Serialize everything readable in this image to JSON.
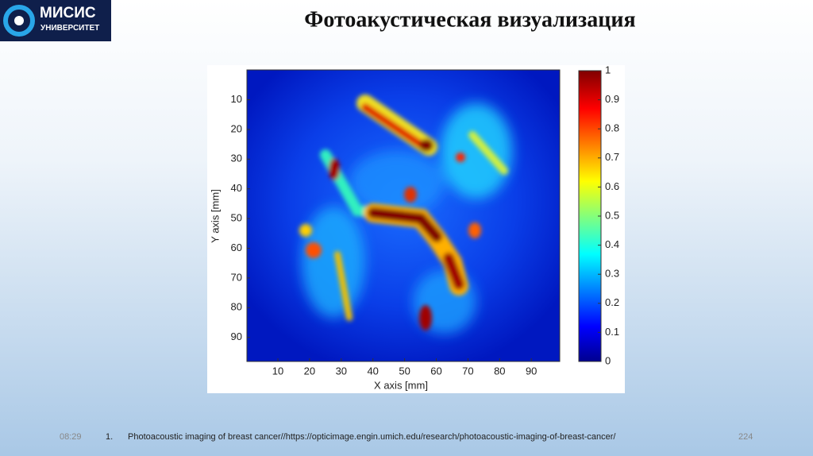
{
  "header": {
    "logo_name": "МИСИС",
    "logo_sub": "УНИВЕРСИТЕТ",
    "title": "Фотоакустическая визуализация"
  },
  "figure": {
    "x_axis_label": "X axis [mm]",
    "y_axis_label": "Y axis [mm]",
    "xticks": [
      10,
      20,
      30,
      40,
      50,
      60,
      70,
      80,
      90
    ],
    "yticks": [
      10,
      20,
      30,
      40,
      50,
      60,
      70,
      80,
      90
    ],
    "colorbar_ticks": [
      0,
      0.1,
      0.2,
      0.3,
      0.4,
      0.5,
      0.6,
      0.7,
      0.8,
      0.9,
      1
    ]
  },
  "footer": {
    "time": "08:29",
    "note_number": "1.",
    "note": "Photoacoustic imaging of breast cancer//https://opticimage.engin.umich.edu/research/photoacoustic-imaging-of-breast-cancer/",
    "page": "224"
  }
}
